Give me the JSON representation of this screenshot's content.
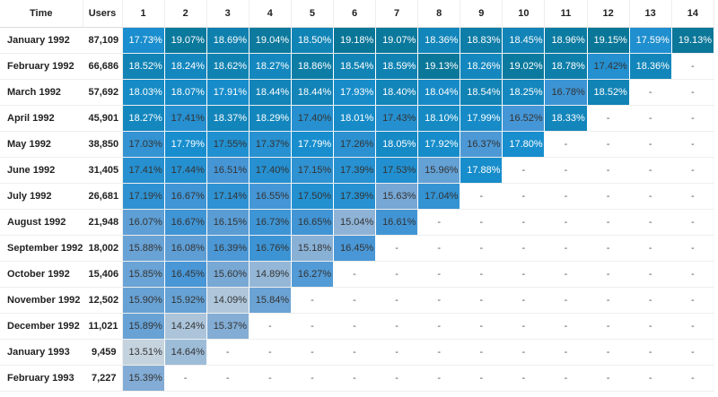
{
  "table": {
    "header": [
      "Time",
      "Users",
      "1",
      "2",
      "3",
      "4",
      "5",
      "6",
      "7",
      "8",
      "9",
      "10",
      "11",
      "12",
      "13",
      "14"
    ],
    "rows": [
      [
        "January 1992",
        "87,109",
        "17.73%",
        "19.07%",
        "18.69%",
        "19.04%",
        "18.50%",
        "19.18%",
        "19.07%",
        "18.36%",
        "18.83%",
        "18.45%",
        "18.96%",
        "19.15%",
        "17.59%",
        "19.13%"
      ],
      [
        "February 1992",
        "66,686",
        "18.52%",
        "18.24%",
        "18.62%",
        "18.27%",
        "18.86%",
        "18.54%",
        "18.59%",
        "19.13%",
        "18.26%",
        "19.02%",
        "18.78%",
        "17.42%",
        "18.36%",
        "-"
      ],
      [
        "March 1992",
        "57,692",
        "18.03%",
        "18.07%",
        "17.91%",
        "18.44%",
        "18.44%",
        "17.93%",
        "18.40%",
        "18.04%",
        "18.54%",
        "18.25%",
        "16.78%",
        "18.52%",
        "-",
        "-"
      ],
      [
        "April 1992",
        "45,901",
        "18.27%",
        "17.41%",
        "18.37%",
        "18.29%",
        "17.40%",
        "18.01%",
        "17.43%",
        "18.10%",
        "17.99%",
        "16.52%",
        "18.33%",
        "-",
        "-",
        "-"
      ],
      [
        "May 1992",
        "38,850",
        "17.03%",
        "17.79%",
        "17.55%",
        "17.37%",
        "17.79%",
        "17.26%",
        "18.05%",
        "17.92%",
        "16.37%",
        "17.80%",
        "-",
        "-",
        "-",
        "-"
      ],
      [
        "June 1992",
        "31,405",
        "17.41%",
        "17.44%",
        "16.51%",
        "17.40%",
        "17.15%",
        "17.39%",
        "17.53%",
        "15.96%",
        "17.88%",
        "-",
        "-",
        "-",
        "-",
        "-"
      ],
      [
        "July 1992",
        "26,681",
        "17.19%",
        "16.67%",
        "17.14%",
        "16.55%",
        "17.50%",
        "17.39%",
        "15.63%",
        "17.04%",
        "-",
        "-",
        "-",
        "-",
        "-",
        "-"
      ],
      [
        "August 1992",
        "21,948",
        "16.07%",
        "16.67%",
        "16.15%",
        "16.73%",
        "16.65%",
        "15.04%",
        "16.61%",
        "-",
        "-",
        "-",
        "-",
        "-",
        "-",
        "-"
      ],
      [
        "September 1992",
        "18,002",
        "15.88%",
        "16.08%",
        "16.39%",
        "16.76%",
        "15.18%",
        "16.45%",
        "-",
        "-",
        "-",
        "-",
        "-",
        "-",
        "-",
        "-"
      ],
      [
        "October 1992",
        "15,406",
        "15.85%",
        "16.45%",
        "15.60%",
        "14.89%",
        "16.27%",
        "-",
        "-",
        "-",
        "-",
        "-",
        "-",
        "-",
        "-",
        "-"
      ],
      [
        "November 1992",
        "12,502",
        "15.90%",
        "15.92%",
        "14.09%",
        "15.84%",
        "-",
        "-",
        "-",
        "-",
        "-",
        "-",
        "-",
        "-",
        "-",
        "-"
      ],
      [
        "December 1992",
        "11,021",
        "15.89%",
        "14.24%",
        "15.37%",
        "-",
        "-",
        "-",
        "-",
        "-",
        "-",
        "-",
        "-",
        "-",
        "-",
        "-"
      ],
      [
        "January 1993",
        "9,459",
        "13.51%",
        "14.64%",
        "-",
        "-",
        "-",
        "-",
        "-",
        "-",
        "-",
        "-",
        "-",
        "-",
        "-",
        "-"
      ],
      [
        "February 1993",
        "7,227",
        "15.39%",
        "-",
        "-",
        "-",
        "-",
        "-",
        "-",
        "-",
        "-",
        "-",
        "-",
        "-",
        "-",
        "-"
      ]
    ]
  }
}
